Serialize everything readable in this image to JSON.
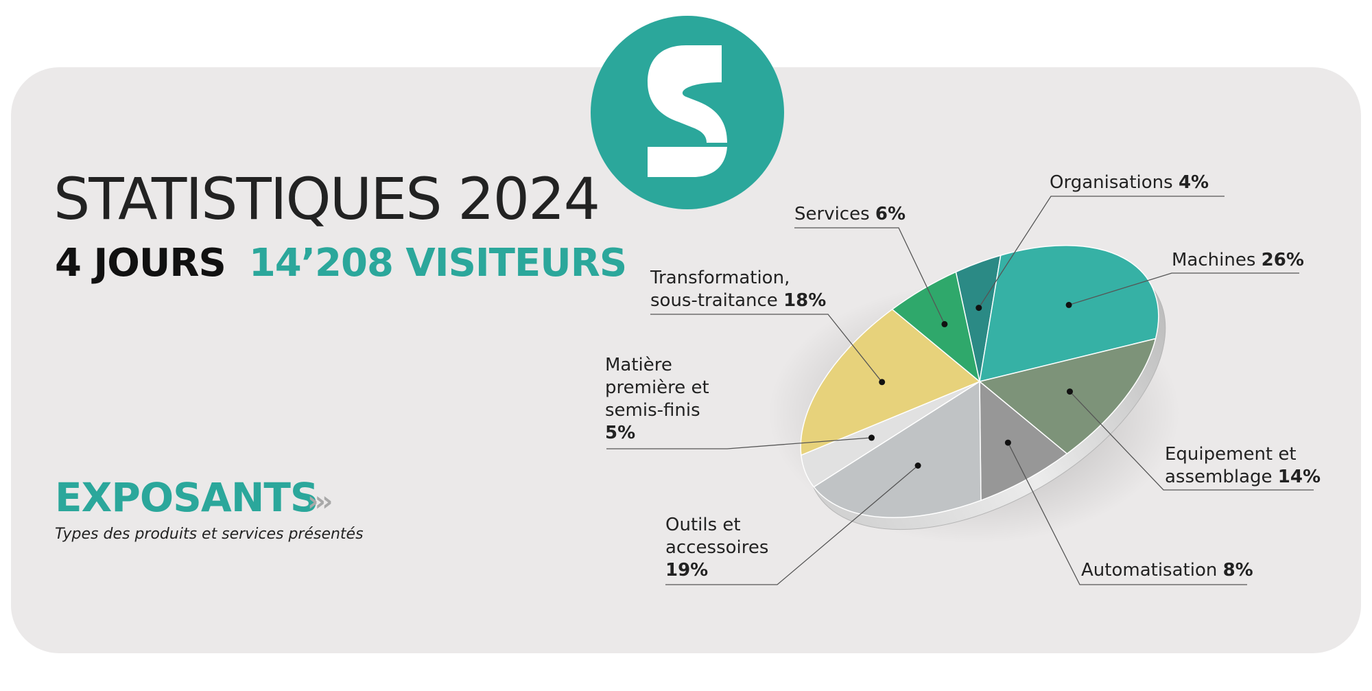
{
  "header": {
    "title": "STATISTIQUES 2024",
    "days": "4 JOURS",
    "visitors": "14’208 VISITEURS"
  },
  "logo": {
    "letter": "S",
    "color": "#2ba79b"
  },
  "section": {
    "title": "EXPOSANTS",
    "arrows": "›››",
    "subtitle": "Types des produits et services présentés"
  },
  "chart_data": {
    "type": "pie",
    "title": "",
    "slices": [
      {
        "label": "Organisations",
        "value": 4,
        "display": "4%",
        "color": "#2b8a85"
      },
      {
        "label": "Machines",
        "value": 26,
        "display": "26%",
        "color": "#36b1a5"
      },
      {
        "label": "Equipement et assemblage",
        "value": 14,
        "display": "14%",
        "color": "#7d9379"
      },
      {
        "label": "Automatisation",
        "value": 8,
        "display": "8%",
        "color": "#979797"
      },
      {
        "label": "Outils et accessoires",
        "value": 19,
        "display": "19%",
        "color": "#c0c3c5"
      },
      {
        "label": "Matière première et semis-finis",
        "value": 5,
        "display": "5%",
        "color": "#e1e1e1"
      },
      {
        "label": "Transformation, sous-traitance",
        "value": 18,
        "display": "18%",
        "color": "#e7d27b"
      },
      {
        "label": "Services",
        "value": 6,
        "display": "6%",
        "color": "#2fa86b"
      }
    ],
    "labels": {
      "organisations": {
        "text": "Organisations",
        "pct": "4%"
      },
      "machines": {
        "text": "Machines",
        "pct": "26%"
      },
      "equipement": {
        "l1": "Equipement et",
        "l2": "assemblage",
        "pct": "14%"
      },
      "automatisation": {
        "text": "Automatisation",
        "pct": "8%"
      },
      "outils": {
        "l1": "Outils et",
        "l2": "accessoires",
        "pct": "19%"
      },
      "matiere": {
        "l1": "Matière",
        "l2": "première et",
        "l3": "semis-finis",
        "pct": "5%"
      },
      "transformation": {
        "l1": "Transformation,",
        "l2": "sous-traitance",
        "pct": "18%"
      },
      "services": {
        "text": "Services",
        "pct": "6%"
      }
    }
  }
}
